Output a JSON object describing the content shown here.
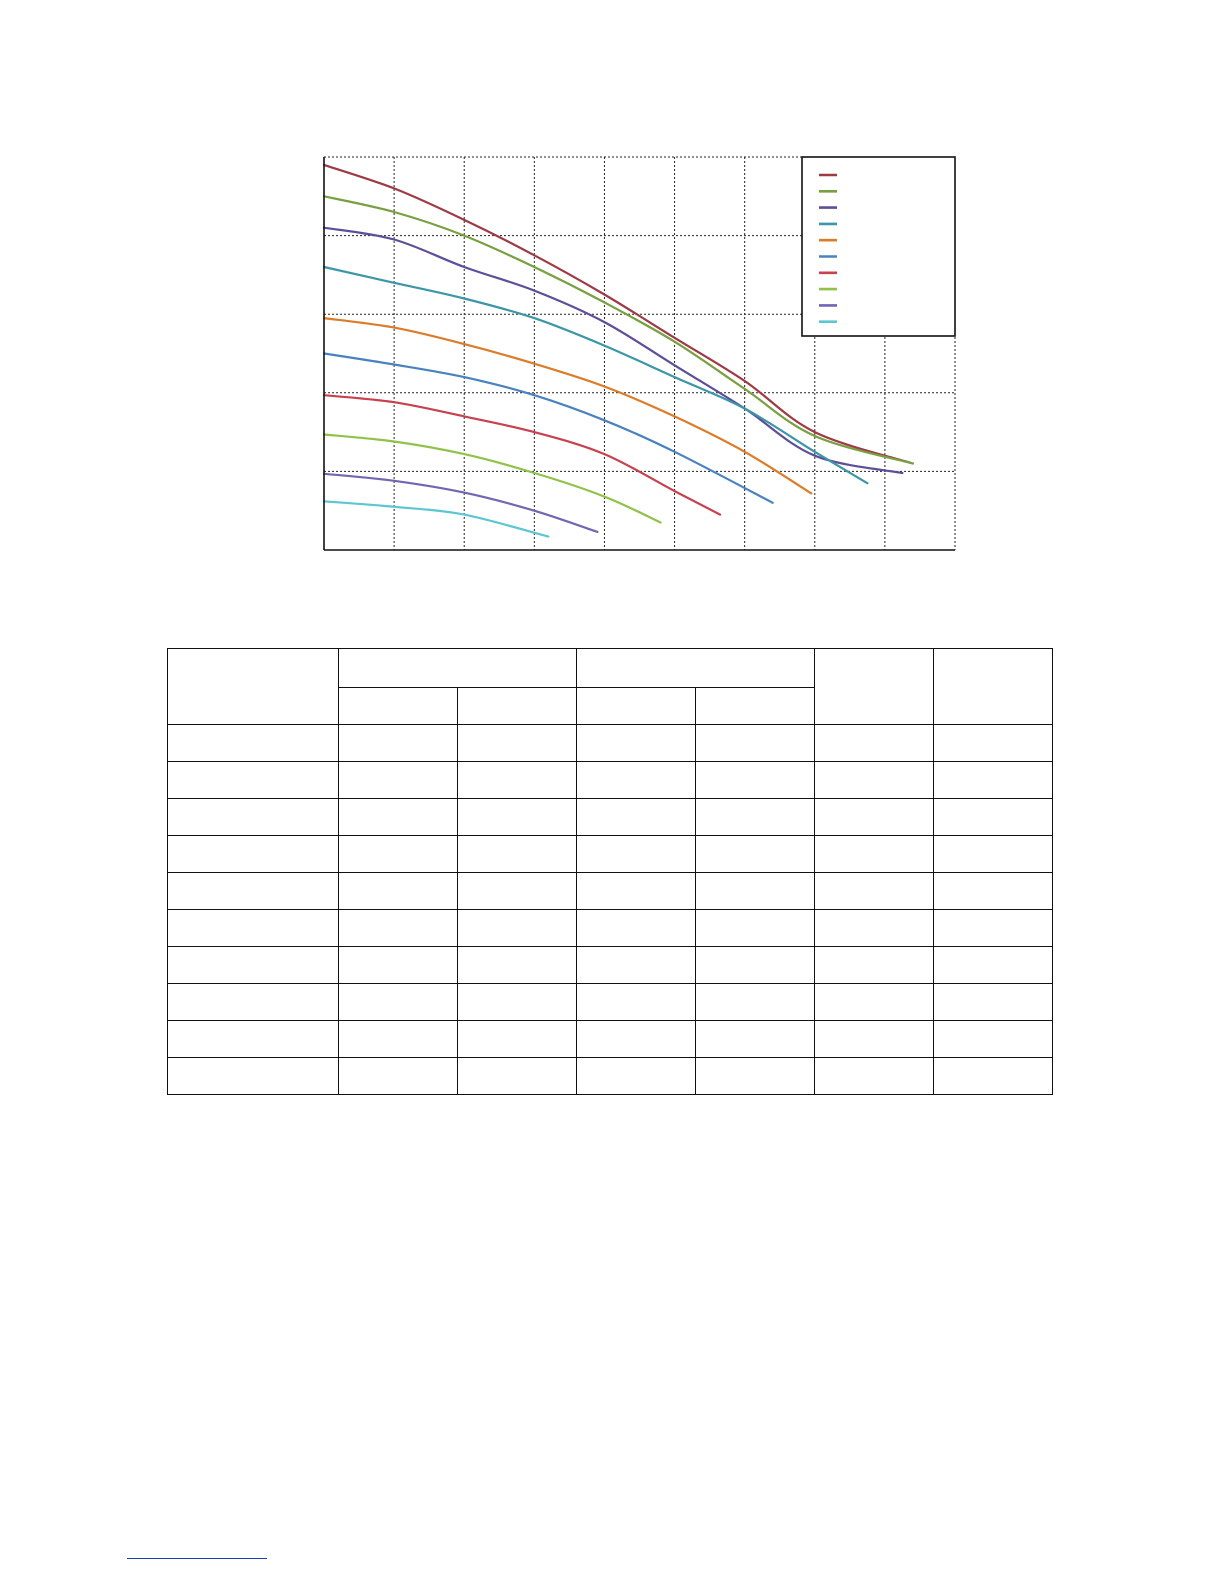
{
  "chart_data": {
    "type": "line",
    "xlim": [
      0,
      9
    ],
    "ylim": [
      0,
      5
    ],
    "grid": true,
    "legend_placement": "top-right",
    "series": [
      {
        "color": "#9e3a46",
        "x": [
          0,
          1,
          2,
          3,
          4,
          5,
          6,
          7,
          8.4
        ],
        "y": [
          4.9,
          4.6,
          4.2,
          3.75,
          3.25,
          2.7,
          2.15,
          1.5,
          1.1
        ]
      },
      {
        "color": "#78a040",
        "x": [
          0,
          1,
          2,
          3,
          4,
          5,
          6,
          7,
          8.4
        ],
        "y": [
          4.5,
          4.3,
          4.0,
          3.6,
          3.15,
          2.65,
          2.05,
          1.45,
          1.1
        ]
      },
      {
        "color": "#5e4e9a",
        "x": [
          0,
          1,
          2,
          3,
          4,
          5,
          6,
          7,
          8.25
        ],
        "y": [
          4.1,
          3.95,
          3.6,
          3.3,
          2.9,
          2.35,
          1.8,
          1.2,
          0.98
        ]
      },
      {
        "color": "#3c96a8",
        "x": [
          0,
          1,
          2,
          3,
          4,
          5,
          6,
          7,
          7.75
        ],
        "y": [
          3.6,
          3.4,
          3.2,
          2.95,
          2.6,
          2.2,
          1.8,
          1.25,
          0.85
        ]
      },
      {
        "color": "#dc7c2a",
        "x": [
          0,
          1,
          2,
          3,
          4,
          5,
          6,
          6.95
        ],
        "y": [
          2.95,
          2.83,
          2.62,
          2.37,
          2.08,
          1.7,
          1.25,
          0.72
        ]
      },
      {
        "color": "#4a82c0",
        "x": [
          0,
          1,
          2,
          3,
          4,
          5,
          6.4
        ],
        "y": [
          2.5,
          2.36,
          2.2,
          1.97,
          1.65,
          1.25,
          0.6
        ]
      },
      {
        "color": "#c8414f",
        "x": [
          0,
          1,
          2,
          3,
          4,
          5,
          5.65
        ],
        "y": [
          1.97,
          1.88,
          1.7,
          1.5,
          1.22,
          0.75,
          0.45
        ]
      },
      {
        "color": "#90c24a",
        "x": [
          0,
          1,
          2,
          3,
          4,
          4.8
        ],
        "y": [
          1.47,
          1.38,
          1.22,
          0.98,
          0.68,
          0.35
        ]
      },
      {
        "color": "#7066b2",
        "x": [
          0,
          1,
          2,
          3,
          3.9
        ],
        "y": [
          0.97,
          0.88,
          0.73,
          0.5,
          0.23
        ]
      },
      {
        "color": "#5cc6d2",
        "x": [
          0,
          1,
          2,
          3.2
        ],
        "y": [
          0.62,
          0.55,
          0.45,
          0.17
        ]
      }
    ]
  },
  "table": {
    "columns": 7,
    "body_rows": 10
  }
}
